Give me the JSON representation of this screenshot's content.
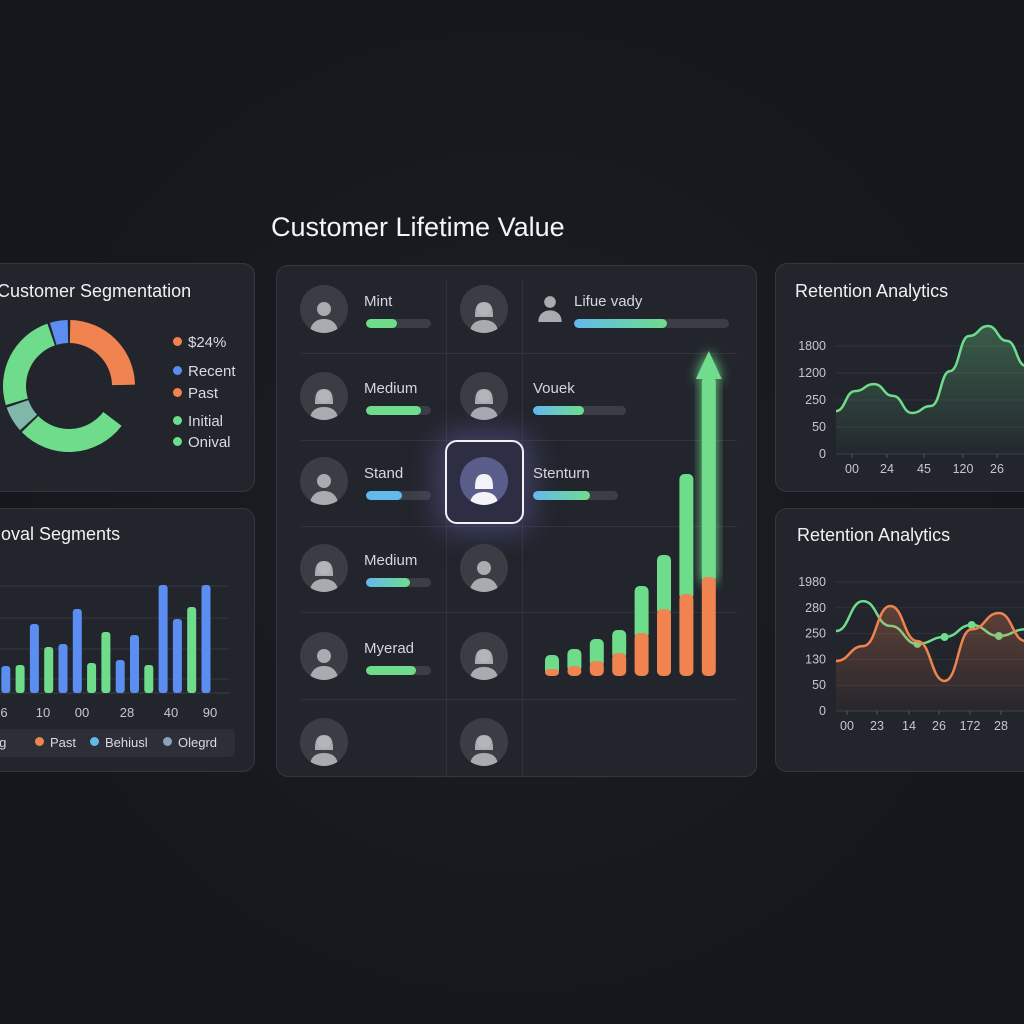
{
  "main_title": "Customer Lifetime Value",
  "colors": {
    "green": "#6fdc8c",
    "blue": "#5b8ef0",
    "orange": "#f0834f",
    "teal": "#7fb8a8",
    "cyan": "#63b9ee",
    "gray_blue": "#8aa2b8",
    "panel": "#22252c",
    "background": "#15171c"
  },
  "segmentation": {
    "title": "Customer Segmentation",
    "legend": [
      {
        "label": "$24%",
        "color": "#f0834f"
      },
      {
        "label": "Recent",
        "color": "#5b8ef0"
      },
      {
        "label": "Past",
        "color": "#f0834f"
      },
      {
        "label": "Initial",
        "color": "#6fdc8c"
      },
      {
        "label": "Onival",
        "color": "#6fdc8c"
      }
    ]
  },
  "segments": {
    "title": "oval Segments",
    "legend": [
      {
        "label": "ing",
        "color": ""
      },
      {
        "label": "Past",
        "color": "#f0834f"
      },
      {
        "label": "Behiusl",
        "color": "#63b9ee"
      },
      {
        "label": "Olegrd",
        "color": "#8aa2b8"
      }
    ]
  },
  "clv_grid": {
    "rows": [
      {
        "c1": {
          "label": "Mint",
          "fill": 0.47,
          "bar": "green",
          "avatar": "male"
        },
        "c2": {
          "avatar": "female"
        },
        "c3": {
          "label": "Lifue vady",
          "fill": 0.6,
          "bar": "cyan-green"
        }
      },
      {
        "c1": {
          "label": "Medium",
          "fill": 0.85,
          "bar": "green",
          "avatar": "female"
        },
        "c2": {
          "avatar": "female"
        },
        "c3": {
          "label": "Vouek",
          "fill": 0.55,
          "bar": "cyan-green"
        }
      },
      {
        "c1": {
          "label": "Stand",
          "fill": 0.55,
          "bar": "cyan",
          "avatar": "male"
        },
        "c2": {
          "avatar": "female",
          "selected": true
        },
        "c3": {
          "label": "Stenturn",
          "fill": 0.67,
          "bar": "cyan-green"
        }
      },
      {
        "c1": {
          "label": "Medium",
          "fill": 0.68,
          "bar": "cyan-green",
          "avatar": "female"
        },
        "c2": {
          "avatar": "male"
        }
      },
      {
        "c1": {
          "label": "Myerad",
          "fill": 0.77,
          "bar": "green",
          "avatar": "male"
        },
        "c2": {
          "avatar": "female"
        }
      },
      {
        "c1": {
          "avatar": "female"
        },
        "c2": {
          "avatar": "female"
        }
      }
    ]
  },
  "retention_top": {
    "title": "Retention Analytics"
  },
  "retention_bottom": {
    "title": "Retention Analytics"
  },
  "chart_data": [
    {
      "type": "pie",
      "variant": "donut",
      "slices": [
        {
          "value": 25,
          "color": "#f0834f"
        },
        {
          "value": 10,
          "color": "none"
        },
        {
          "value": 28,
          "color": "#6fdc8c"
        },
        {
          "value": 7,
          "color": "#7fb8a8"
        },
        {
          "value": 25,
          "color": "#6fdc8c"
        },
        {
          "value": 5,
          "color": "#5b8ef0"
        }
      ]
    },
    {
      "type": "bar",
      "x_tick_labels": [
        "6",
        "10",
        "00",
        "28",
        "40",
        "90"
      ],
      "grid": true,
      "values": [
        98,
        27,
        28,
        69,
        46,
        49,
        84,
        30,
        61,
        33,
        58,
        28,
        108,
        74,
        86,
        108
      ],
      "bar_colors": [
        "#5b8ef0",
        "#5b8ef0",
        "#6fdc8c",
        "#5b8ef0",
        "#6fdc8c",
        "#5b8ef0",
        "#5b8ef0",
        "#6fdc8c",
        "#6fdc8c",
        "#5b8ef0",
        "#5b8ef0",
        "#6fdc8c",
        "#5b8ef0",
        "#5b8ef0",
        "#6fdc8c",
        "#5b8ef0"
      ]
    },
    {
      "type": "bar",
      "stacked": true,
      "trend_arrow": true,
      "series": [
        {
          "color": "#f0834f",
          "values": [
            7,
            10,
            15,
            23,
            43,
            67,
            82,
            99
          ]
        },
        {
          "color": "#6fdc8c",
          "values": [
            14,
            17,
            22,
            23,
            47,
            54,
            120,
            200
          ]
        }
      ]
    },
    {
      "type": "area",
      "title": "Retention Analytics",
      "y_ticks": [
        0,
        50,
        250,
        1200,
        1800
      ],
      "y_tick_labels": [
        "0",
        "50",
        "250",
        "1200",
        "1800"
      ],
      "x_tick_labels": [
        "00",
        "24",
        "45",
        "120",
        "26"
      ],
      "grid": true,
      "series": [
        {
          "color": "#6fdc8c",
          "values": [
            168,
            564,
            810,
            393,
            154,
            206,
            1242,
            2022,
            2244,
            1914,
            1356
          ]
        }
      ]
    },
    {
      "type": "line",
      "title": "Retention Analytics",
      "y_ticks": [
        0,
        50,
        130,
        250,
        280,
        1980
      ],
      "y_tick_labels": [
        "0",
        "50",
        "130",
        "250",
        "280",
        "1980"
      ],
      "x_tick_labels": [
        "00",
        "23",
        "14",
        "26",
        "172",
        "28"
      ],
      "grid": true,
      "series": [
        {
          "color": "#6fdc8c",
          "values": [
            253,
            722,
            259,
            202,
            234,
            260,
            239,
            255
          ],
          "markers": [
            3,
            4,
            5,
            6
          ]
        },
        {
          "color": "#f0834f",
          "values": [
            125,
            192,
            399,
            215,
            63,
            255,
            274,
            215
          ],
          "fill": true
        }
      ]
    }
  ]
}
